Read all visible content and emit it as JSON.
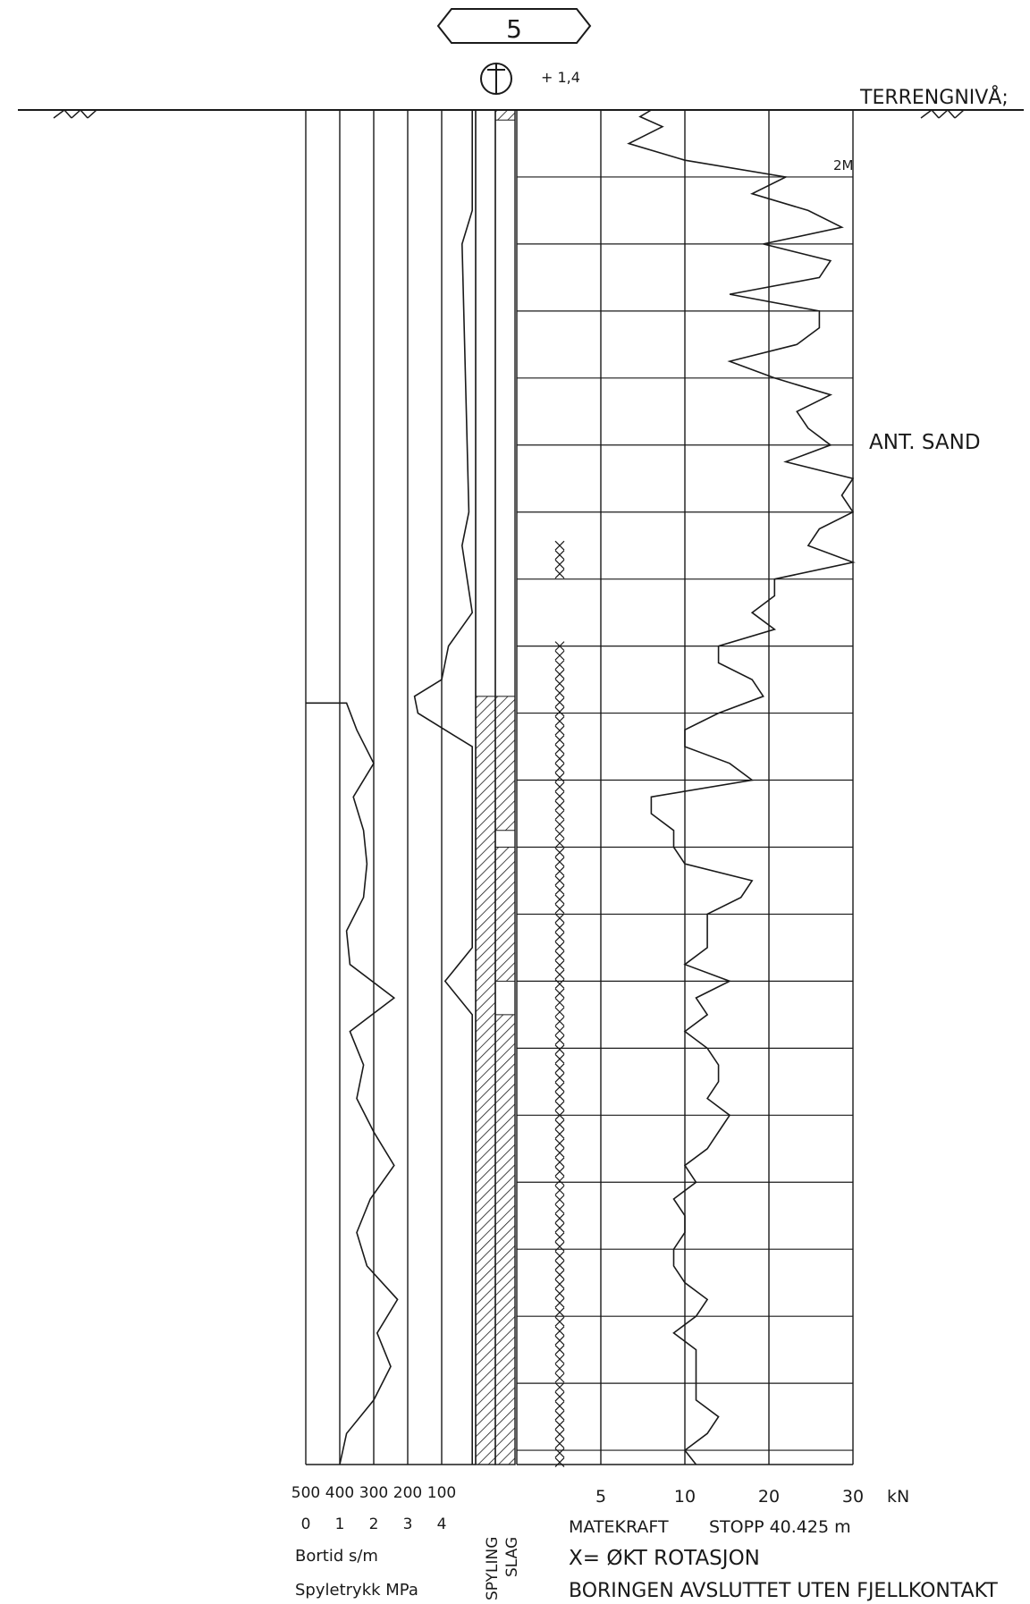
{
  "header": {
    "borehole_no": "5",
    "symbol_letter": "T",
    "elevation": "+ 1,4",
    "ground_level_label": "TERRENGNIVÅ;"
  },
  "annotations": {
    "depth_mark": "2M",
    "soil_note": "ANT. SAND"
  },
  "axes": {
    "bortid_ticks": [
      "500",
      "400",
      "300",
      "200",
      "100"
    ],
    "spyletrykk_ticks": [
      "0",
      "1",
      "2",
      "3",
      "4"
    ],
    "bortid_label": "Bortid s/m",
    "spyletrykk_label": "Spyletrykk MPa",
    "mode_labels": [
      "SPYLING",
      "SLAG"
    ],
    "force_ticks": [
      "5",
      "10",
      "20",
      "30"
    ],
    "force_unit": "kN",
    "force_label": "MATEKRAFT",
    "stop_label": "STOPP 40.425 m",
    "x_legend": "X= ØKT ROTASJON",
    "end_note": "BORINGEN AVSLUTTET UTEN FJELLKONTAKT"
  },
  "chart_data": {
    "type": "line",
    "title": "",
    "stop_depth_m": 40.425,
    "y_axis": "depth_m",
    "series": [
      {
        "name": "MATEKRAFT",
        "unit": "kN",
        "depth_m": [
          0,
          0.2,
          0.5,
          1.0,
          1.5,
          2.0,
          2.5,
          3.0,
          3.5,
          4.0,
          4.5,
          5.0,
          5.5,
          6.0,
          6.5,
          7.0,
          7.5,
          8.0,
          8.5,
          9.0,
          9.5,
          10.0,
          10.5,
          11.0,
          11.5,
          12.0,
          12.5,
          13.0,
          13.5,
          14.0,
          14.5,
          15.0,
          15.5,
          16.0,
          16.5,
          17.0,
          17.5,
          18.0,
          18.5,
          19.0,
          19.5,
          20.0,
          20.5,
          21.0,
          21.5,
          22.0,
          22.5,
          23.0,
          23.5,
          24.0,
          24.5,
          25.0,
          25.5,
          26.0,
          26.5,
          27.0,
          27.5,
          28.0,
          28.5,
          29.0,
          29.5,
          30.0,
          30.5,
          31.0,
          31.5,
          32.0,
          32.5,
          33.0,
          33.5,
          34.0,
          34.5,
          35.0,
          35.5,
          36.0,
          36.5,
          37.0,
          37.5,
          38.0,
          38.5,
          39.0,
          39.5,
          40.0,
          40.425
        ],
        "values": [
          12,
          11,
          13,
          10,
          15,
          24,
          21,
          26,
          29,
          22,
          28,
          27,
          19,
          27,
          27,
          25,
          19,
          23,
          28,
          25,
          26,
          28,
          24,
          30,
          29,
          30,
          27,
          26,
          30,
          23,
          23,
          21,
          23,
          18,
          18,
          21,
          22,
          18,
          15,
          15,
          19,
          21,
          12,
          12,
          14,
          14,
          15,
          21,
          20,
          17,
          17,
          17,
          15,
          19,
          16,
          17,
          15,
          17,
          18,
          18,
          17,
          19,
          18,
          17,
          15,
          16,
          14,
          15,
          15,
          14,
          14,
          15,
          17,
          16,
          14,
          16,
          16,
          16,
          16,
          18,
          17,
          15,
          16
        ]
      },
      {
        "name": "Bortid",
        "unit": "s/m",
        "depth_m": [
          17.7,
          18.5,
          19.5,
          20.5,
          21.5,
          22.5,
          23.5,
          24.5,
          25.5,
          26.5,
          27.5,
          28.5,
          29.5,
          30.5,
          31.5,
          32.5,
          33.5,
          34.5,
          35.5,
          36.5,
          37.5,
          38.5,
          39.5,
          40.425
        ],
        "values": [
          380,
          350,
          300,
          360,
          330,
          320,
          330,
          380,
          370,
          240,
          370,
          330,
          350,
          300,
          240,
          310,
          350,
          320,
          230,
          290,
          250,
          300,
          380,
          400
        ]
      },
      {
        "name": "Spyletrykk",
        "unit": "MPa",
        "depth_m": [
          0,
          3.0,
          4.0,
          12.0,
          13.0,
          15.0,
          16.0,
          17.0,
          17.5,
          18.0,
          19.0,
          25.0,
          26.0,
          27.0,
          40.425
        ],
        "values": [
          4.9,
          4.9,
          4.6,
          4.8,
          4.6,
          4.9,
          4.2,
          4.0,
          3.2,
          3.3,
          4.9,
          4.9,
          4.1,
          4.9,
          4.9
        ]
      }
    ],
    "bands": {
      "slag_intervals_m": [
        [
          0,
          0.3
        ],
        [
          17.5,
          21.5
        ],
        [
          22.0,
          26.0
        ],
        [
          27.0,
          40.425
        ]
      ],
      "spyling_intervals_m": [
        [
          17.5,
          40.425
        ]
      ],
      "rotation_x_intervals_m": [
        [
          13.0,
          14.0
        ],
        [
          16.0,
          40.425
        ]
      ]
    },
    "annotations": [
      {
        "depth_m": 1.5,
        "text": "2M"
      },
      {
        "depth_m": 10.0,
        "text": "ANT. SAND"
      }
    ]
  }
}
